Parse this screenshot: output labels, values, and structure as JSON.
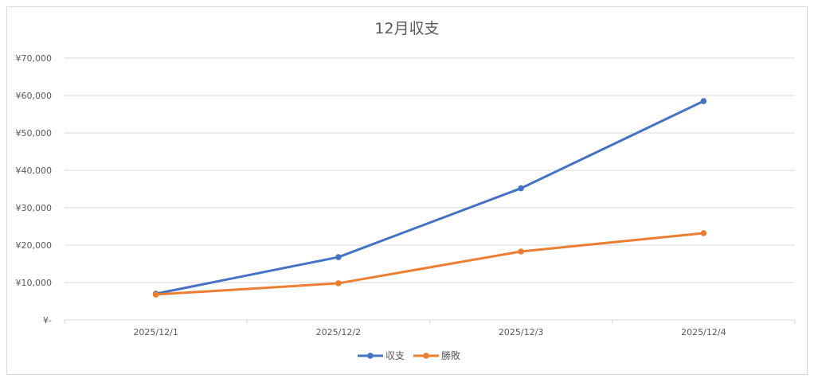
{
  "chart_data": {
    "type": "line",
    "title": "12月収支",
    "categories": [
      "2025/12/1",
      "2025/12/2",
      "2025/12/3",
      "2025/12/4"
    ],
    "series": [
      {
        "name": "収支",
        "values": [
          7000,
          16800,
          35200,
          58500
        ],
        "color": "#4472C4"
      },
      {
        "name": "勝敗",
        "values": [
          6800,
          9800,
          18300,
          23200
        ],
        "color": "#ED7D31"
      }
    ],
    "ylim": [
      0,
      70000
    ],
    "yticks": [
      0,
      10000,
      20000,
      30000,
      40000,
      50000,
      60000,
      70000
    ],
    "ytick_labels": [
      "¥-",
      "¥10,000",
      "¥20,000",
      "¥30,000",
      "¥40,000",
      "¥50,000",
      "¥60,000",
      "¥70,000"
    ],
    "grid": true,
    "legend_position": "bottom",
    "xlabel": "",
    "ylabel": ""
  }
}
